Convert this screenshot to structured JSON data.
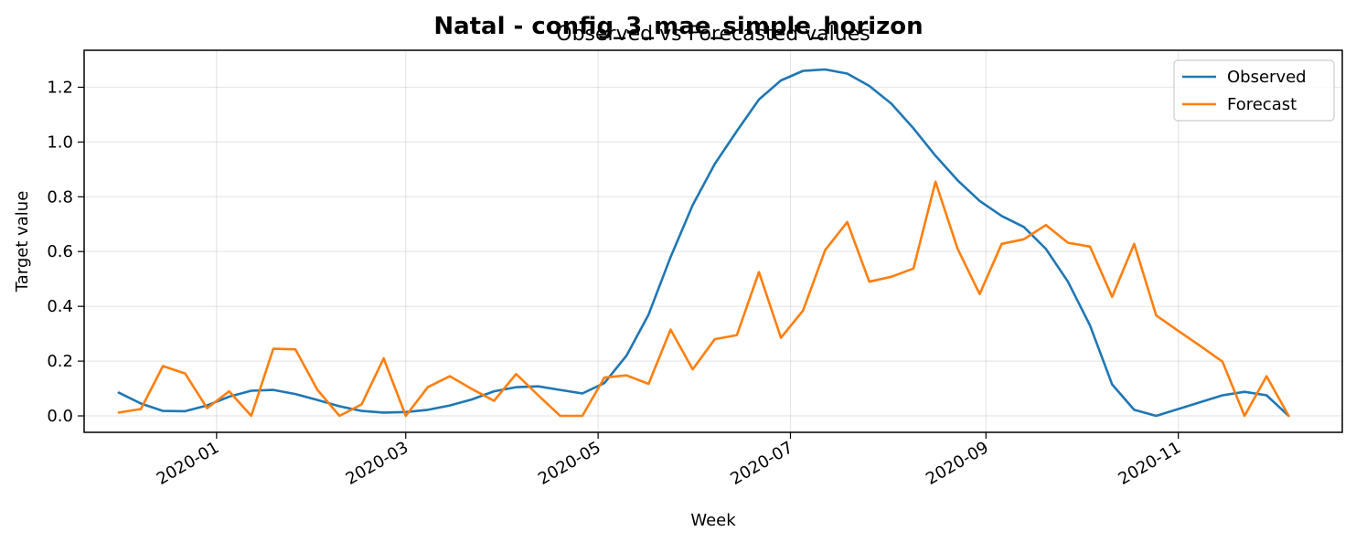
{
  "chart_data": {
    "type": "line",
    "suptitle": "Natal - config_3_mae_simple_horizon",
    "title": "Observed vs Forecasted values",
    "xlabel": "Week",
    "ylabel": "Target value",
    "x_range": [
      "2019-11-20",
      "2020-12-23"
    ],
    "ylim": [
      -0.06,
      1.335
    ],
    "x_ticks": [
      "2020-01",
      "2020-03",
      "2020-05",
      "2020-07",
      "2020-09",
      "2020-11"
    ],
    "y_ticks": [
      "0.0",
      "0.2",
      "0.4",
      "0.6",
      "0.8",
      "1.0",
      "1.2"
    ],
    "grid": true,
    "legend_position": "upper right",
    "x": [
      "2019-12-01",
      "2019-12-08",
      "2019-12-15",
      "2019-12-22",
      "2019-12-29",
      "2020-01-05",
      "2020-01-12",
      "2020-01-19",
      "2020-01-26",
      "2020-02-02",
      "2020-02-09",
      "2020-02-16",
      "2020-02-23",
      "2020-03-01",
      "2020-03-08",
      "2020-03-15",
      "2020-03-22",
      "2020-03-29",
      "2020-04-05",
      "2020-04-12",
      "2020-04-19",
      "2020-04-26",
      "2020-05-03",
      "2020-05-10",
      "2020-05-17",
      "2020-05-24",
      "2020-05-31",
      "2020-06-07",
      "2020-06-14",
      "2020-06-21",
      "2020-06-28",
      "2020-07-05",
      "2020-07-12",
      "2020-07-19",
      "2020-07-26",
      "2020-08-02",
      "2020-08-09",
      "2020-08-16",
      "2020-08-23",
      "2020-08-30",
      "2020-09-06",
      "2020-09-13",
      "2020-09-20",
      "2020-09-27",
      "2020-10-04",
      "2020-10-11",
      "2020-10-18",
      "2020-10-25",
      "2020-11-01",
      "2020-11-08",
      "2020-11-15",
      "2020-11-22",
      "2020-11-29",
      "2020-12-06"
    ],
    "series": [
      {
        "name": "Observed",
        "color": "#1f77b4",
        "values": [
          0.085,
          0.045,
          0.018,
          0.017,
          0.038,
          0.07,
          0.092,
          0.095,
          0.08,
          0.058,
          0.035,
          0.018,
          0.012,
          0.014,
          0.022,
          0.038,
          0.06,
          0.09,
          0.105,
          0.108,
          0.095,
          0.082,
          0.12,
          0.22,
          0.37,
          0.58,
          0.77,
          0.92,
          1.04,
          1.155,
          1.225,
          1.26,
          1.265,
          1.25,
          1.205,
          1.14,
          1.05,
          0.95,
          0.86,
          0.785,
          0.73,
          0.69,
          0.61,
          0.49,
          0.33,
          0.115,
          0.022,
          0.0,
          0.025,
          0.05,
          0.075,
          0.088,
          0.075,
          0.0
        ]
      },
      {
        "name": "Forecast",
        "color": "#ff7f0e",
        "values": [
          0.012,
          0.025,
          0.182,
          0.155,
          0.028,
          0.09,
          0.0,
          0.245,
          0.243,
          0.095,
          0.0,
          0.042,
          0.21,
          0.0,
          0.105,
          0.145,
          0.098,
          0.055,
          0.153,
          0.075,
          0.0,
          0.0,
          0.14,
          0.148,
          0.117,
          0.315,
          0.17,
          0.28,
          0.295,
          0.525,
          0.285,
          0.385,
          0.605,
          0.708,
          0.49,
          0.508,
          0.538,
          0.855,
          0.61,
          0.445,
          0.628,
          0.645,
          0.697,
          0.632,
          0.618,
          0.435,
          0.628,
          0.367,
          0.31,
          0.255,
          0.198,
          0.0,
          0.145,
          0.0
        ]
      }
    ]
  }
}
